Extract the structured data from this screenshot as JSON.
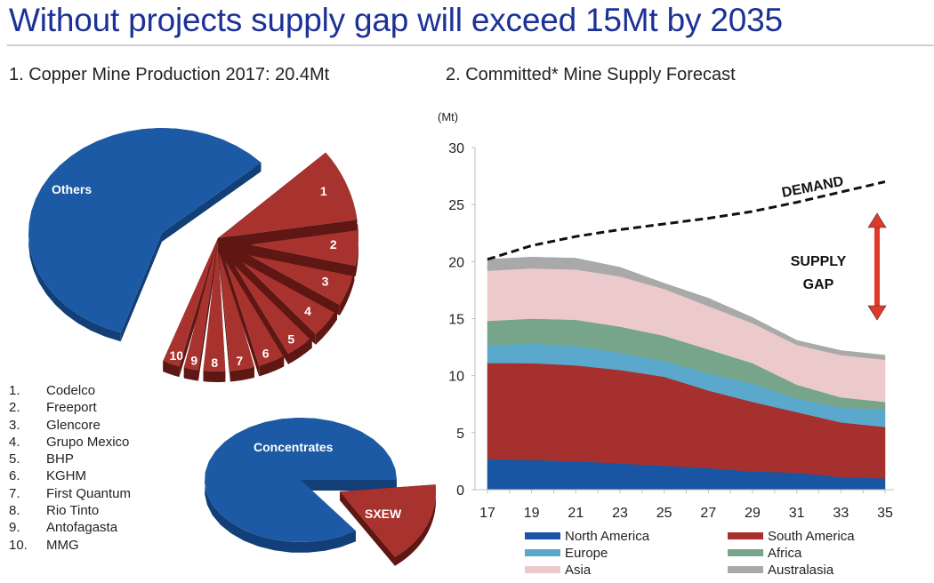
{
  "header": {
    "title": "Without projects supply gap will exceed 15Mt by 2035",
    "subtitle_left": "1. Copper Mine Production 2017: 20.4Mt",
    "subtitle_right": "2. Committed* Mine Supply Forecast"
  },
  "producers": {
    "others_label": "Others",
    "items": [
      {
        "num": "1.",
        "label": "1",
        "name": "Codelco"
      },
      {
        "num": "2.",
        "label": "2",
        "name": "Freeport"
      },
      {
        "num": "3.",
        "label": "3",
        "name": "Glencore"
      },
      {
        "num": "4.",
        "label": "4",
        "name": "Grupo Mexico"
      },
      {
        "num": "5.",
        "label": "5",
        "name": "BHP"
      },
      {
        "num": "6.",
        "label": "6",
        "name": "KGHM"
      },
      {
        "num": "7.",
        "label": "7",
        "name": "First Quantum"
      },
      {
        "num": "8.",
        "label": "8",
        "name": "Rio Tinto"
      },
      {
        "num": "9.",
        "label": "9",
        "name": "Antofagasta"
      },
      {
        "num": "10.",
        "label": "10",
        "name": "MMG"
      }
    ],
    "colors": {
      "others": "#1d5aa6",
      "top10": "#a8322e"
    }
  },
  "process": {
    "concentrates_label": "Concentrates",
    "sxew_label": "SXEW"
  },
  "chart_data": {
    "type": "area",
    "title": "2. Committed* Mine Supply Forecast",
    "ylabel": "(Mt)",
    "xlabel": "",
    "ylim": [
      0,
      30
    ],
    "yticks": [
      0,
      5,
      10,
      15,
      20,
      25,
      30
    ],
    "xticks": [
      "17",
      "19",
      "21",
      "23",
      "25",
      "27",
      "29",
      "31",
      "33",
      "35"
    ],
    "x": [
      17,
      19,
      21,
      23,
      25,
      27,
      29,
      31,
      33,
      35
    ],
    "stacked": true,
    "series": [
      {
        "name": "North America",
        "color": "#1a55a3",
        "values": [
          2.7,
          2.6,
          2.5,
          2.3,
          2.1,
          1.9,
          1.6,
          1.5,
          1.1,
          1.0
        ]
      },
      {
        "name": "South America",
        "color": "#a6302d",
        "values": [
          8.4,
          8.5,
          8.4,
          8.2,
          7.8,
          6.8,
          6.1,
          5.3,
          4.8,
          4.5
        ]
      },
      {
        "name": "Europe",
        "color": "#5aa8cc",
        "values": [
          1.6,
          1.7,
          1.7,
          1.5,
          1.4,
          1.5,
          1.6,
          1.2,
          1.3,
          1.5
        ]
      },
      {
        "name": "Africa",
        "color": "#77a58a",
        "values": [
          2.1,
          2.2,
          2.3,
          2.3,
          2.2,
          2.1,
          1.8,
          1.2,
          0.9,
          0.7
        ]
      },
      {
        "name": "Asia",
        "color": "#eccacb",
        "values": [
          4.4,
          4.4,
          4.4,
          4.4,
          4.1,
          3.8,
          3.5,
          3.5,
          3.7,
          3.7
        ]
      },
      {
        "name": "Australasia",
        "color": "#a9a9a9",
        "values": [
          1.0,
          1.0,
          1.0,
          0.8,
          0.5,
          0.7,
          0.5,
          0.4,
          0.4,
          0.4
        ]
      }
    ],
    "demand": {
      "name": "DEMAND",
      "values": [
        20.2,
        21.4,
        22.2,
        22.8,
        23.3,
        23.8,
        24.4,
        25.2,
        26.1,
        27.0
      ]
    },
    "annotations": [
      {
        "text": "DEMAND"
      },
      {
        "text": "SUPPLY"
      },
      {
        "text": "GAP"
      }
    ],
    "gap_arrow_color": "#e0392b",
    "legend": "bottom",
    "grid": false
  }
}
